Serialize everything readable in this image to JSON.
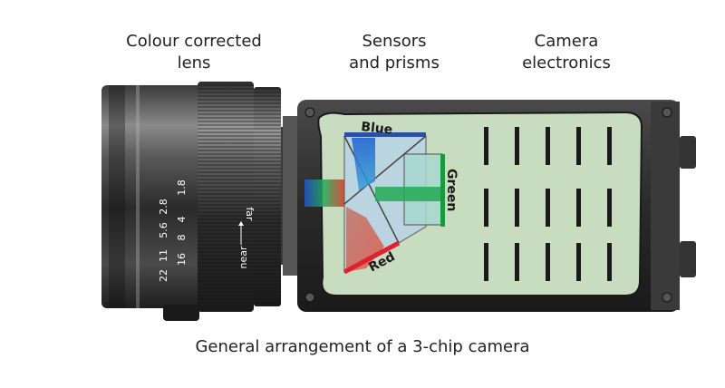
{
  "labels": {
    "lens_line1": "Colour corrected",
    "lens_line2": "lens",
    "sensors_line1": "Sensors",
    "sensors_line2": "and prisms",
    "electronics_line1": "Camera",
    "electronics_line2": "electronics"
  },
  "sensors": {
    "blue": "Blue",
    "green": "Green",
    "red": "Red"
  },
  "lens_scale": {
    "far": "far",
    "near": "near",
    "row_top": [
      "1.8",
      "2.8"
    ],
    "row_mid": [
      "4",
      "5.6"
    ],
    "row_low": [
      "8",
      "11"
    ],
    "row_bot": [
      "16",
      "22"
    ]
  },
  "caption": "General arrangement of a 3-chip camera",
  "colors": {
    "board": "#c8dcc0",
    "blue": "#2b4fa3",
    "green": "#1a9a3c",
    "red": "#e02030",
    "body": "#2a2a2a"
  }
}
